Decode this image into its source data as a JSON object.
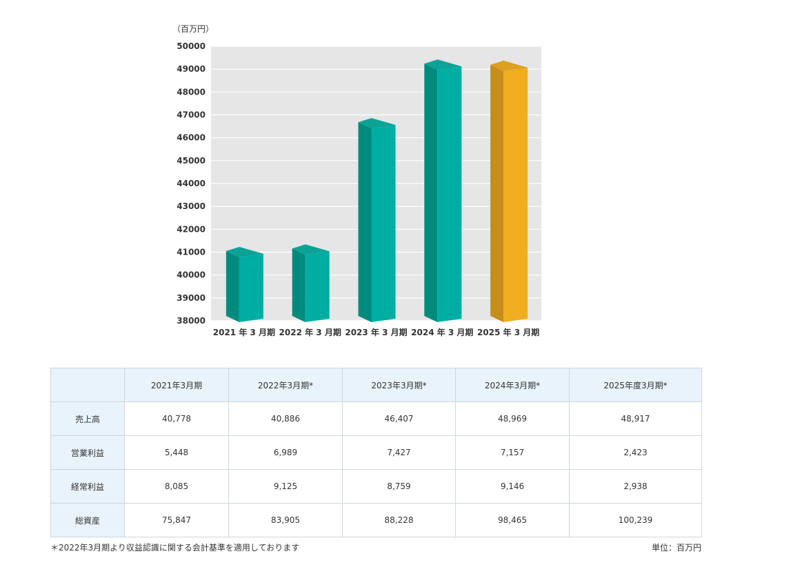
{
  "chart_data": {
    "type": "bar",
    "unit_label": "（百万円）",
    "categories": [
      "2021 年 3 月期",
      "2022 年 3 月期",
      "2023 年 3 月期",
      "2024 年 3 月期",
      "2025 年 3 月期"
    ],
    "values": [
      40778,
      40886,
      46407,
      48969,
      48917
    ],
    "ylim": [
      38000,
      50000
    ],
    "yticks": [
      38000,
      39000,
      40000,
      41000,
      42000,
      43000,
      44000,
      45000,
      46000,
      47000,
      48000,
      49000,
      50000
    ],
    "grid": true,
    "colors": {
      "teal_front": "#00ada3",
      "teal_side": "#008b7f",
      "teal_top": "#0ca396",
      "gold_front": "#f0ad20",
      "gold_side": "#c58e1b",
      "gold_top": "#dba020",
      "plot_bg": "#e6e6e6",
      "grid": "#ffffff"
    }
  },
  "table": {
    "headers": [
      "",
      "2021年3月期",
      "2022年3月期*",
      "2023年3月期*",
      "2024年3月期*",
      "2025年度3月期*"
    ],
    "rows": [
      {
        "label": "売上高",
        "values": [
          "40,778",
          "40,886",
          "46,407",
          "48,969",
          "48,917"
        ]
      },
      {
        "label": "営業利益",
        "values": [
          "5,448",
          "6,989",
          "7,427",
          "7,157",
          "2,423"
        ]
      },
      {
        "label": "経常利益",
        "values": [
          "8,085",
          "9,125",
          "8,759",
          "9,146",
          "2,938"
        ]
      },
      {
        "label": "総資産",
        "values": [
          "75,847",
          "83,905",
          "88,228",
          "98,465",
          "100,239"
        ]
      }
    ]
  },
  "notes": {
    "left": "＊2022年3月期より収益認識に関する会計基準を適用しております",
    "right": "単位：百万円"
  }
}
